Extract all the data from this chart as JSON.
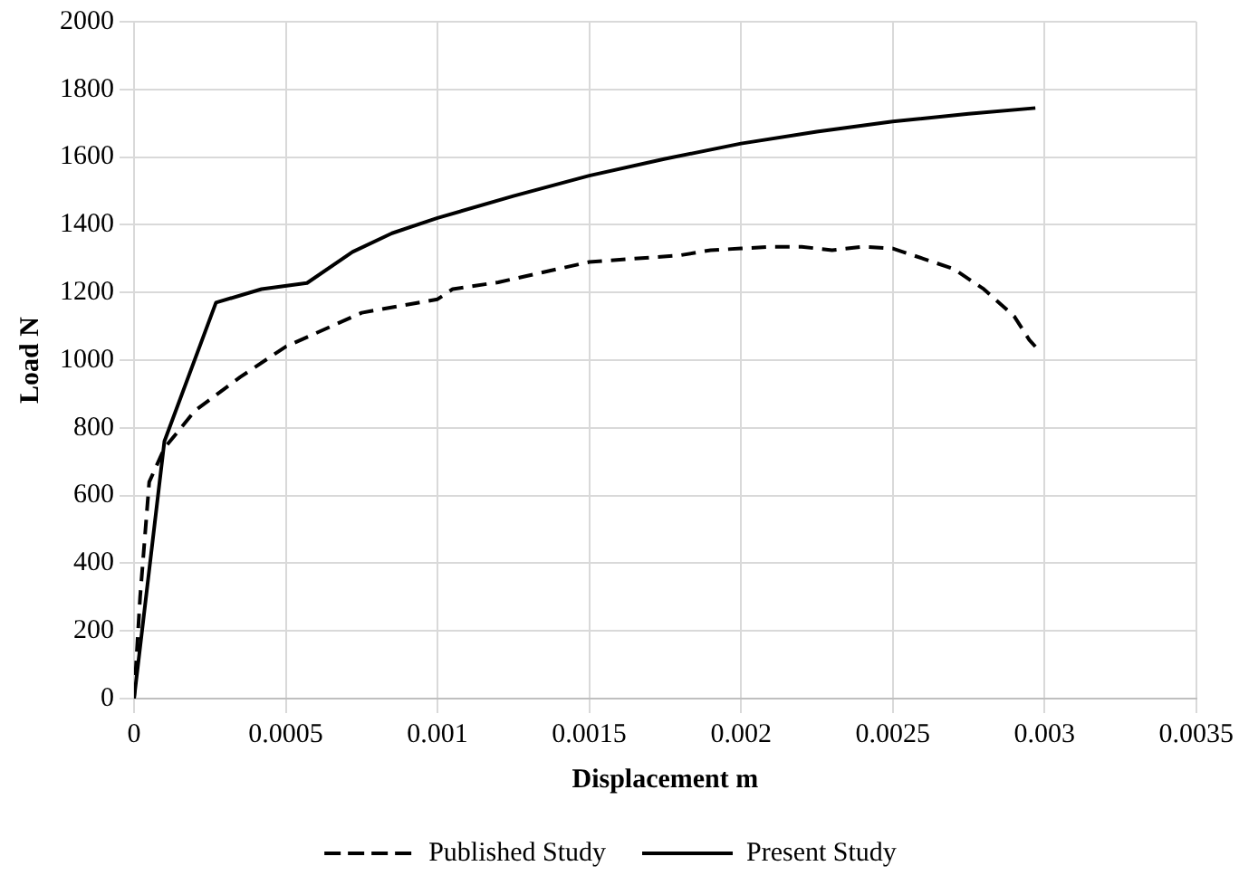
{
  "chart_data": {
    "type": "line",
    "xlabel": "Displacement m",
    "ylabel": "Load N",
    "xlim": [
      0,
      0.0035
    ],
    "xticks": [
      0,
      0.0005,
      0.001,
      0.0015,
      0.002,
      0.0025,
      0.003,
      0.0035
    ],
    "ylim": [
      0,
      2000
    ],
    "yticks": [
      0,
      200,
      400,
      600,
      800,
      1000,
      1200,
      1400,
      1600,
      1800,
      2000
    ],
    "grid": true,
    "legend": "bottom",
    "marker": "none",
    "series": [
      {
        "name": "Published Study",
        "color": "#000000",
        "line_style": "dashed",
        "x": [
          0,
          2e-05,
          5e-05,
          0.0001,
          0.0002,
          0.00035,
          0.0005,
          0.0006,
          0.00075,
          0.001,
          0.00105,
          0.0012,
          0.0013,
          0.0015,
          0.0018,
          0.0019,
          0.002,
          0.0021,
          0.0022,
          0.0023,
          0.0024,
          0.0025,
          0.0026,
          0.0027,
          0.0028,
          0.0029,
          0.00295,
          0.00297
        ],
        "values": [
          0,
          300,
          640,
          740,
          850,
          950,
          1040,
          1080,
          1140,
          1180,
          1210,
          1230,
          1250,
          1290,
          1310,
          1325,
          1330,
          1335,
          1335,
          1325,
          1335,
          1330,
          1300,
          1270,
          1210,
          1130,
          1060,
          1040
        ]
      },
      {
        "name": "Present Study",
        "color": "#000000",
        "line_style": "solid",
        "x": [
          0,
          0.0001,
          0.00027,
          0.00042,
          0.00057,
          0.00072,
          0.00085,
          0.001,
          0.00125,
          0.0015,
          0.00175,
          0.002,
          0.00225,
          0.0025,
          0.00275,
          0.00297
        ],
        "values": [
          0,
          760,
          1170,
          1210,
          1228,
          1320,
          1375,
          1420,
          1485,
          1545,
          1595,
          1640,
          1675,
          1705,
          1728,
          1745
        ]
      }
    ]
  }
}
